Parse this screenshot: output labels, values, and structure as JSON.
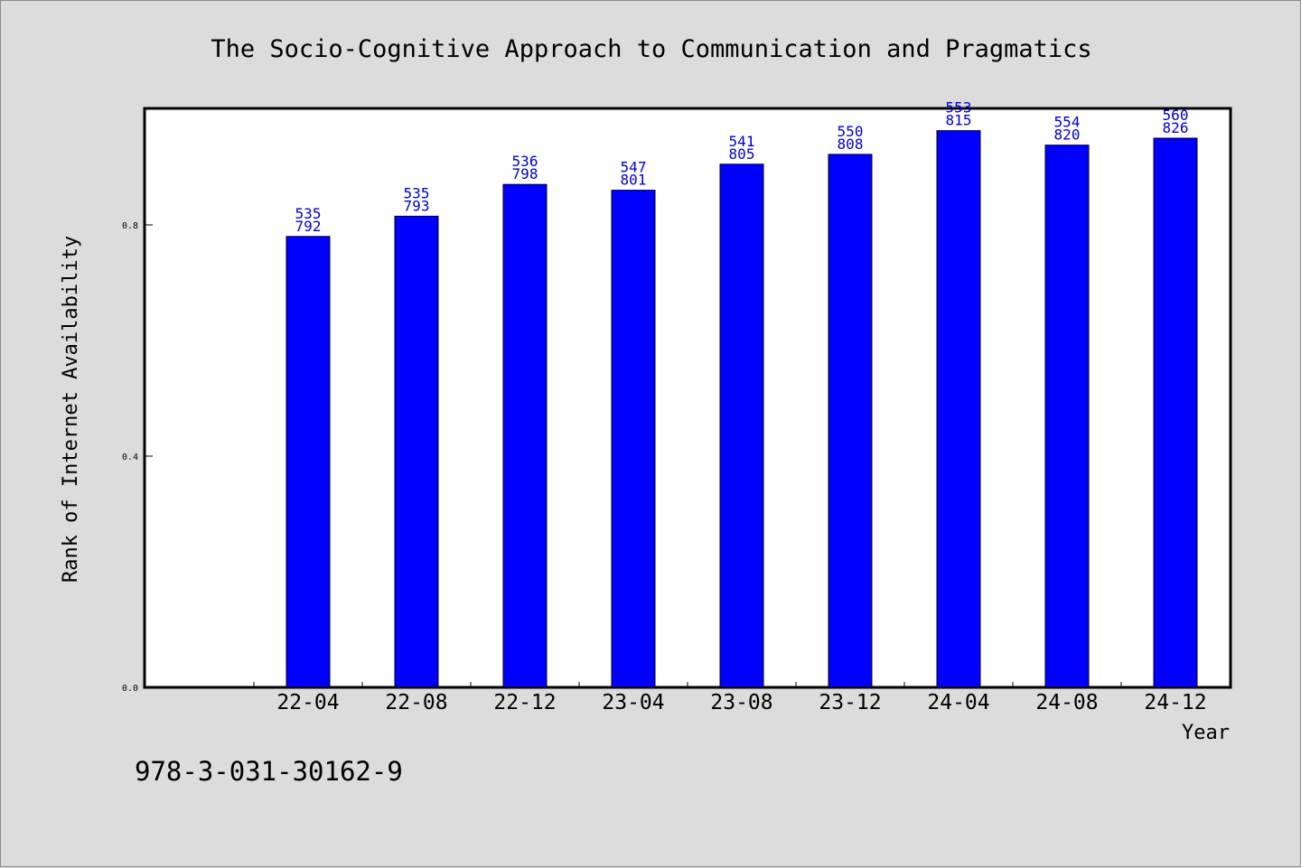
{
  "chart_data": {
    "type": "bar",
    "title": "The Socio-Cognitive Approach to Communication and Pragmatics",
    "xlabel": "Year",
    "ylabel": "Rank of Internet Availability",
    "categories": [
      "22-04",
      "22-08",
      "22-12",
      "23-04",
      "23-08",
      "23-12",
      "24-04",
      "24-08",
      "24-12"
    ],
    "values": [
      0.78,
      0.815,
      0.87,
      0.86,
      0.905,
      0.922,
      0.963,
      0.938,
      0.95
    ],
    "bar_labels_top": [
      "535",
      "535",
      "536",
      "547",
      "541",
      "550",
      "553",
      "554",
      "560"
    ],
    "bar_labels_bottom": [
      "792",
      "793",
      "798",
      "801",
      "805",
      "808",
      "815",
      "820",
      "826"
    ],
    "yticks": [
      "0.0",
      "0.4",
      "0.8"
    ],
    "ytick_values": [
      0.0,
      0.4,
      0.8
    ],
    "ylim": [
      0,
      1.0
    ],
    "bar_color": "#0000ff",
    "label_color": "#0000cc",
    "grid": false
  },
  "footer": {
    "isbn": "978-3-031-30162-9"
  }
}
